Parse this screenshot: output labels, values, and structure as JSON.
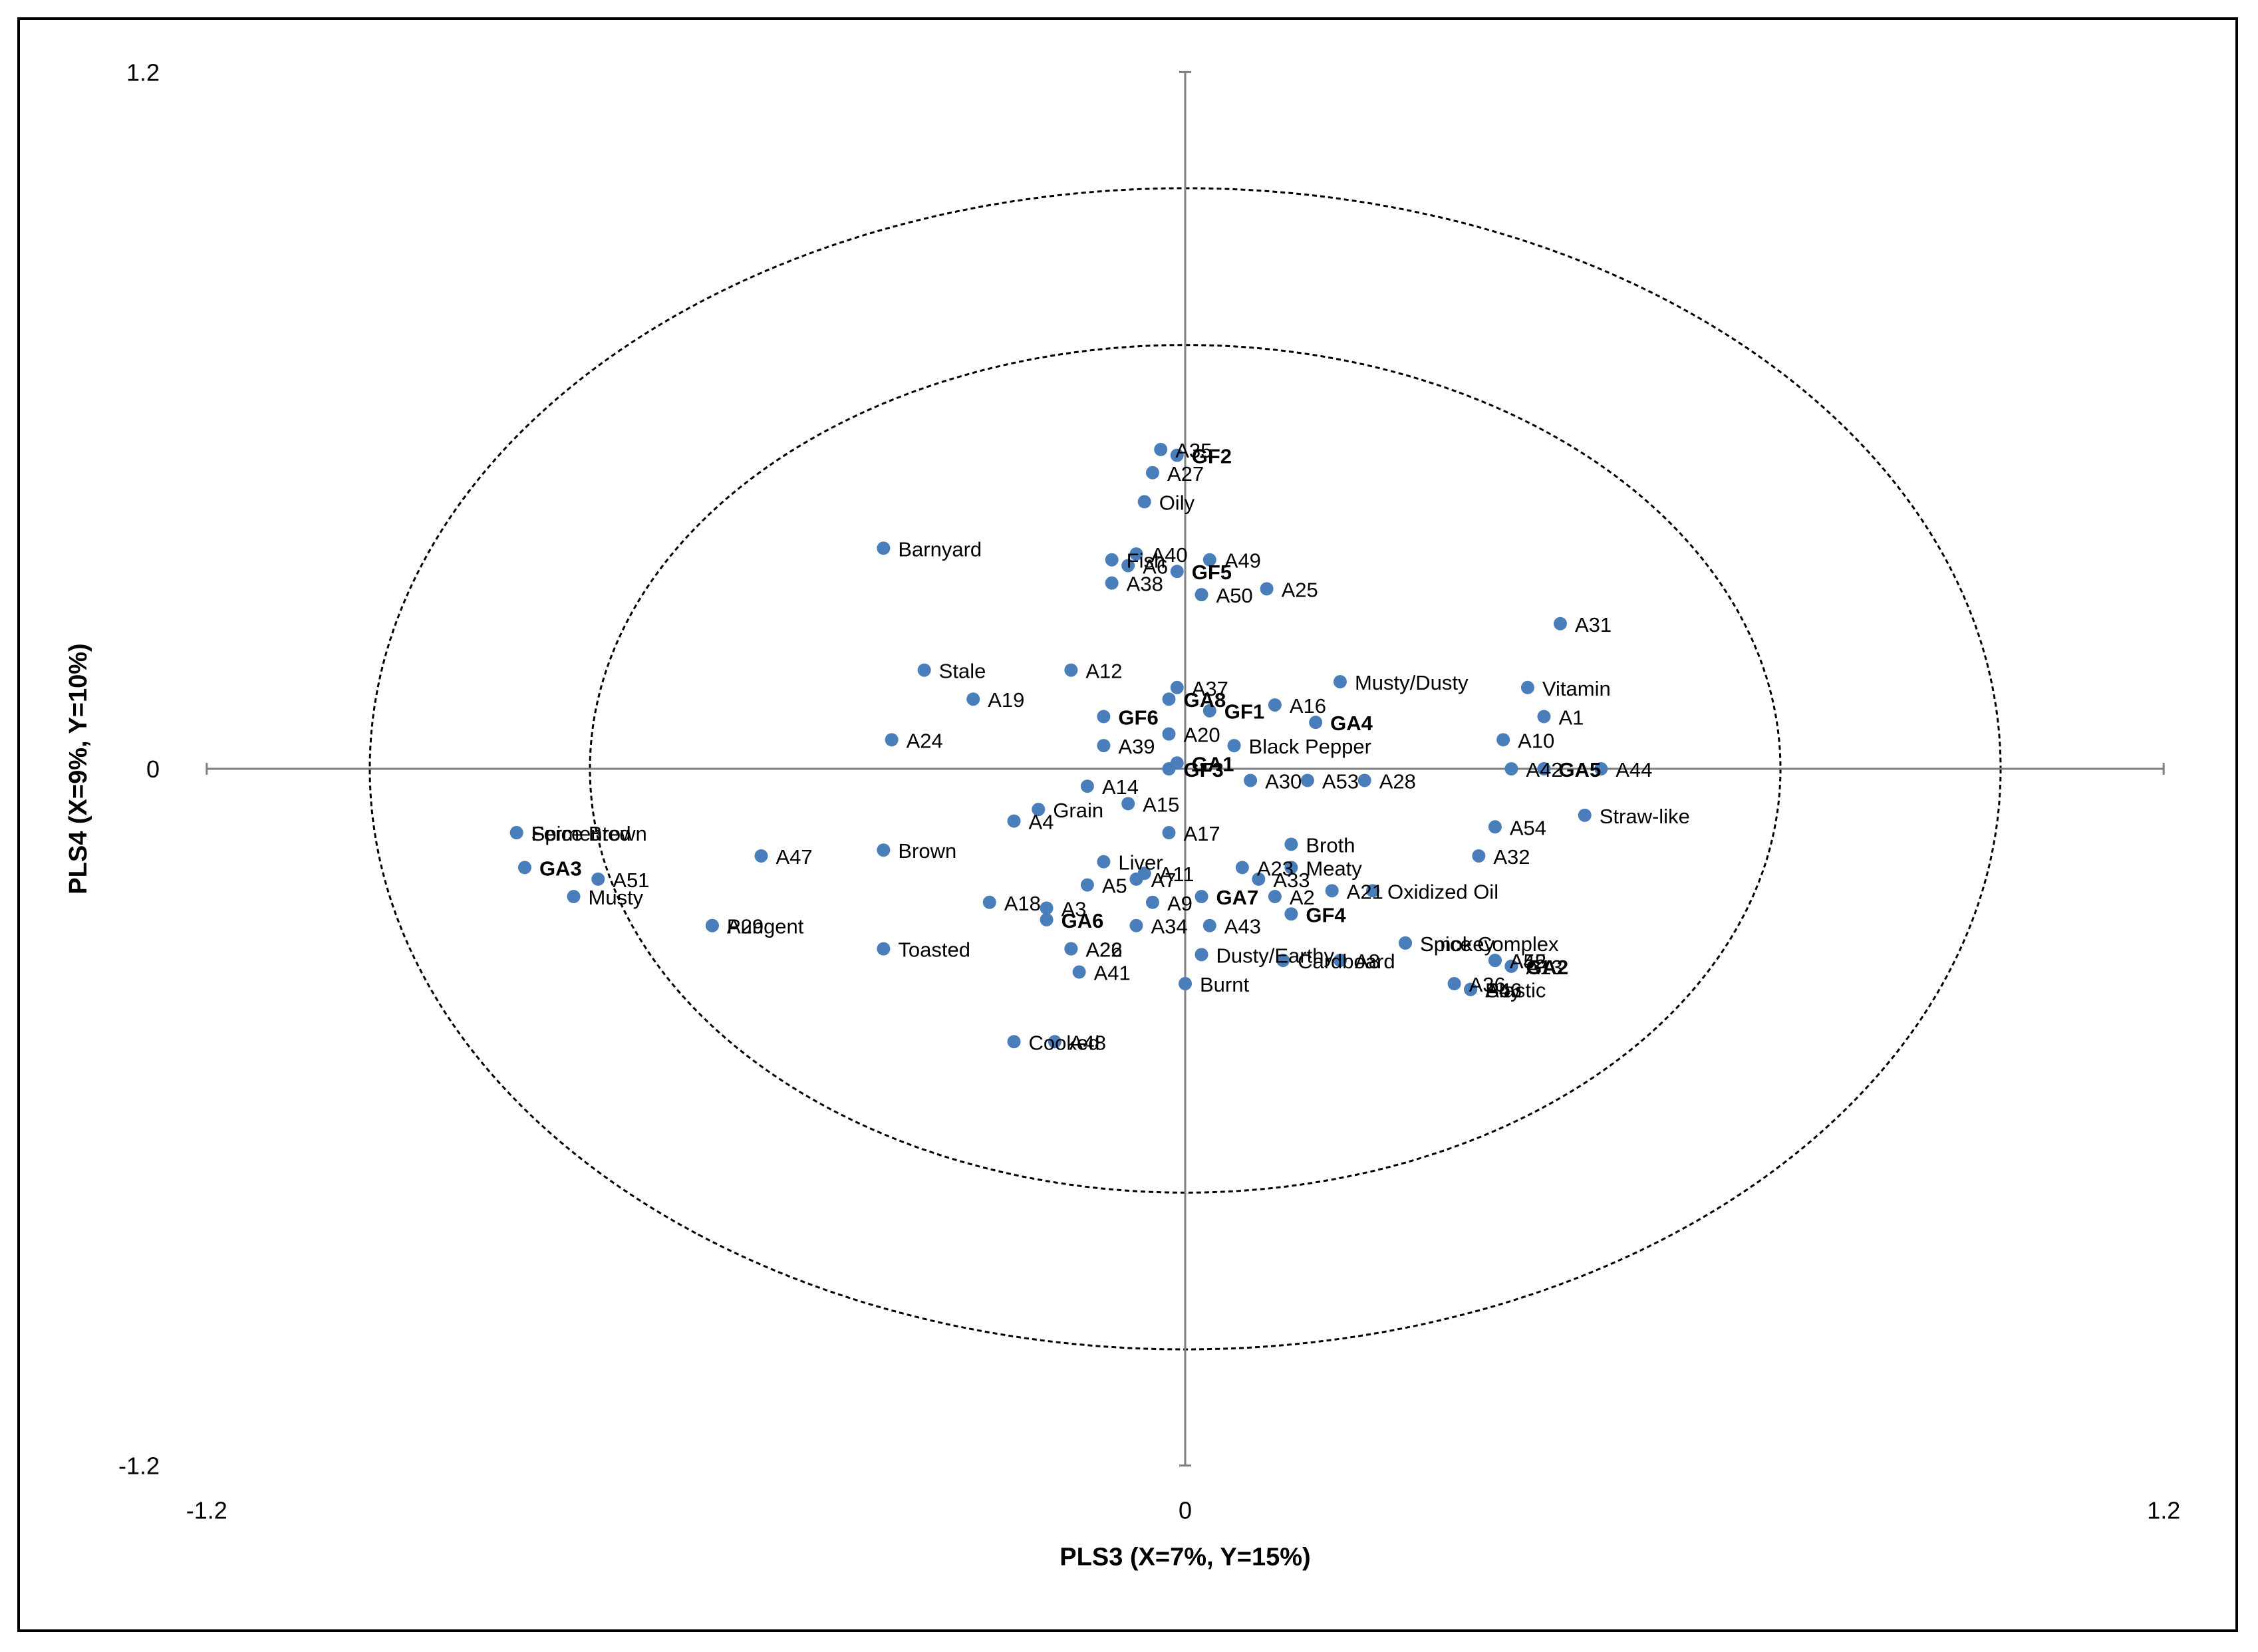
{
  "chart_data": {
    "type": "scatter",
    "title": "",
    "xlabel": "PLS3 (X=7%, Y=15%)",
    "ylabel": "PLS4 (X=9%, Y=10%)",
    "xlim": [
      -1.2,
      1.2
    ],
    "ylim": [
      -1.2,
      1.2
    ],
    "x_ticks": [
      -1.2,
      0,
      1.2
    ],
    "y_ticks": [
      -1.2,
      0,
      1.2
    ],
    "x_tick_labels": [
      "-1.2",
      "0",
      "1.2"
    ],
    "y_tick_labels": [
      "-1.2",
      "0",
      "1.2"
    ],
    "grid": false,
    "legend": "none",
    "marker_color": "#4a7ebb",
    "reference_circles": [
      {
        "radius": 1.0,
        "style": "dashed"
      },
      {
        "radius": 0.73,
        "style": "dashed"
      }
    ],
    "points": [
      {
        "label": "A35",
        "x": -0.03,
        "y": 0.55,
        "bold": false
      },
      {
        "label": "GF2",
        "x": -0.01,
        "y": 0.54,
        "bold": true
      },
      {
        "label": "A27",
        "x": -0.04,
        "y": 0.51,
        "bold": false
      },
      {
        "label": "Oily",
        "x": -0.05,
        "y": 0.46,
        "bold": false
      },
      {
        "label": "Barnyard",
        "x": -0.37,
        "y": 0.38,
        "bold": false
      },
      {
        "label": "Fish",
        "x": -0.09,
        "y": 0.36,
        "bold": false
      },
      {
        "label": "A40",
        "x": -0.06,
        "y": 0.37,
        "bold": false
      },
      {
        "label": "A49",
        "x": 0.03,
        "y": 0.36,
        "bold": false
      },
      {
        "label": "A6",
        "x": -0.07,
        "y": 0.35,
        "bold": false
      },
      {
        "label": "GF5",
        "x": -0.01,
        "y": 0.34,
        "bold": true
      },
      {
        "label": "A38",
        "x": -0.09,
        "y": 0.32,
        "bold": false
      },
      {
        "label": "A25",
        "x": 0.1,
        "y": 0.31,
        "bold": false
      },
      {
        "label": "A50",
        "x": 0.02,
        "y": 0.3,
        "bold": false
      },
      {
        "label": "A31",
        "x": 0.46,
        "y": 0.25,
        "bold": false
      },
      {
        "label": "Stale",
        "x": -0.32,
        "y": 0.17,
        "bold": false
      },
      {
        "label": "A12",
        "x": -0.14,
        "y": 0.17,
        "bold": false
      },
      {
        "label": "A37",
        "x": -0.01,
        "y": 0.14,
        "bold": false
      },
      {
        "label": "Musty/Dusty",
        "x": 0.19,
        "y": 0.15,
        "bold": false
      },
      {
        "label": "A19",
        "x": -0.26,
        "y": 0.12,
        "bold": false
      },
      {
        "label": "GA8",
        "x": -0.02,
        "y": 0.12,
        "bold": true
      },
      {
        "label": "A16",
        "x": 0.11,
        "y": 0.11,
        "bold": false
      },
      {
        "label": "Vitamin",
        "x": 0.42,
        "y": 0.14,
        "bold": false
      },
      {
        "label": "GF6",
        "x": -0.1,
        "y": 0.09,
        "bold": true
      },
      {
        "label": "GF1",
        "x": 0.03,
        "y": 0.1,
        "bold": true
      },
      {
        "label": "GA4",
        "x": 0.16,
        "y": 0.08,
        "bold": true
      },
      {
        "label": "A1",
        "x": 0.44,
        "y": 0.09,
        "bold": false
      },
      {
        "label": "A20",
        "x": -0.02,
        "y": 0.06,
        "bold": false
      },
      {
        "label": "A24",
        "x": -0.36,
        "y": 0.05,
        "bold": false
      },
      {
        "label": "A10",
        "x": 0.39,
        "y": 0.05,
        "bold": false
      },
      {
        "label": "A39",
        "x": -0.1,
        "y": 0.04,
        "bold": false
      },
      {
        "label": "Black Pepper",
        "x": 0.06,
        "y": 0.04,
        "bold": false
      },
      {
        "label": "GA1",
        "x": -0.01,
        "y": 0.01,
        "bold": true
      },
      {
        "label": "GF3",
        "x": -0.02,
        "y": 0.0,
        "bold": true
      },
      {
        "label": "A42",
        "x": 0.4,
        "y": 0.0,
        "bold": false
      },
      {
        "label": "GA5",
        "x": 0.44,
        "y": 0.0,
        "bold": true
      },
      {
        "label": "A44",
        "x": 0.51,
        "y": 0.0,
        "bold": false
      },
      {
        "label": "A14",
        "x": -0.12,
        "y": -0.03,
        "bold": false
      },
      {
        "label": "A30",
        "x": 0.08,
        "y": -0.02,
        "bold": false
      },
      {
        "label": "A53",
        "x": 0.15,
        "y": -0.02,
        "bold": false
      },
      {
        "label": "A28",
        "x": 0.22,
        "y": -0.02,
        "bold": false
      },
      {
        "label": "A15",
        "x": -0.07,
        "y": -0.06,
        "bold": false
      },
      {
        "label": "Grain",
        "x": -0.18,
        "y": -0.07,
        "bold": false
      },
      {
        "label": "Straw-like",
        "x": 0.49,
        "y": -0.08,
        "bold": false
      },
      {
        "label": "A4",
        "x": -0.21,
        "y": -0.09,
        "bold": false
      },
      {
        "label": "A17",
        "x": -0.02,
        "y": -0.11,
        "bold": false
      },
      {
        "label": "A54",
        "x": 0.38,
        "y": -0.1,
        "bold": false
      },
      {
        "label": "Fermented",
        "x": -0.82,
        "y": -0.11,
        "bold": false
      },
      {
        "label": "Spice Brown",
        "x": -0.82,
        "y": -0.11,
        "bold": false
      },
      {
        "label": "Brown",
        "x": -0.37,
        "y": -0.14,
        "bold": false
      },
      {
        "label": "A47",
        "x": -0.52,
        "y": -0.15,
        "bold": false
      },
      {
        "label": "Broth",
        "x": 0.13,
        "y": -0.13,
        "bold": false
      },
      {
        "label": "A32",
        "x": 0.36,
        "y": -0.15,
        "bold": false
      },
      {
        "label": "GA3",
        "x": -0.81,
        "y": -0.17,
        "bold": true
      },
      {
        "label": "A51",
        "x": -0.72,
        "y": -0.19,
        "bold": false
      },
      {
        "label": "Liver",
        "x": -0.1,
        "y": -0.16,
        "bold": false
      },
      {
        "label": "A23",
        "x": 0.07,
        "y": -0.17,
        "bold": false
      },
      {
        "label": "Meaty",
        "x": 0.13,
        "y": -0.17,
        "bold": false
      },
      {
        "label": "A11",
        "x": -0.05,
        "y": -0.18,
        "bold": false
      },
      {
        "label": "A33",
        "x": 0.09,
        "y": -0.19,
        "bold": false
      },
      {
        "label": "A7",
        "x": -0.06,
        "y": -0.19,
        "bold": false
      },
      {
        "label": "Musty",
        "x": -0.75,
        "y": -0.22,
        "bold": false
      },
      {
        "label": "A18",
        "x": -0.24,
        "y": -0.23,
        "bold": false
      },
      {
        "label": "A5",
        "x": -0.12,
        "y": -0.2,
        "bold": false
      },
      {
        "label": "A21",
        "x": 0.18,
        "y": -0.21,
        "bold": false
      },
      {
        "label": "Oxidized Oil",
        "x": 0.23,
        "y": -0.21,
        "bold": false
      },
      {
        "label": "GA7",
        "x": 0.02,
        "y": -0.22,
        "bold": true
      },
      {
        "label": "A2",
        "x": 0.11,
        "y": -0.22,
        "bold": false
      },
      {
        "label": "A3",
        "x": -0.17,
        "y": -0.24,
        "bold": false
      },
      {
        "label": "A9",
        "x": -0.04,
        "y": -0.23,
        "bold": false
      },
      {
        "label": "GF4",
        "x": 0.13,
        "y": -0.25,
        "bold": true
      },
      {
        "label": "GA6",
        "x": -0.17,
        "y": -0.26,
        "bold": true
      },
      {
        "label": "A34",
        "x": -0.06,
        "y": -0.27,
        "bold": false
      },
      {
        "label": "A43",
        "x": 0.03,
        "y": -0.27,
        "bold": false
      },
      {
        "label": "Pungent",
        "x": -0.58,
        "y": -0.27,
        "bold": false
      },
      {
        "label": "A29",
        "x": -0.58,
        "y": -0.27,
        "bold": false
      },
      {
        "label": "Spice Complex",
        "x": 0.27,
        "y": -0.3,
        "bold": false
      },
      {
        "label": "Smokey",
        "x": 0.27,
        "y": -0.3,
        "bold": false
      },
      {
        "label": "A45",
        "x": 0.38,
        "y": -0.33,
        "bold": false
      },
      {
        "label": "Toasted",
        "x": -0.37,
        "y": -0.31,
        "bold": false
      },
      {
        "label": "A22",
        "x": -0.14,
        "y": -0.31,
        "bold": false
      },
      {
        "label": "A26",
        "x": -0.14,
        "y": -0.31,
        "bold": false
      },
      {
        "label": "Dusty/Earthy",
        "x": 0.02,
        "y": -0.32,
        "bold": false
      },
      {
        "label": "A8",
        "x": 0.19,
        "y": -0.33,
        "bold": false
      },
      {
        "label": "A52",
        "x": 0.38,
        "y": -0.33,
        "bold": false
      },
      {
        "label": "GA2",
        "x": 0.4,
        "y": -0.34,
        "bold": true
      },
      {
        "label": "A41",
        "x": -0.13,
        "y": -0.35,
        "bold": false
      },
      {
        "label": "A13",
        "x": 0.4,
        "y": -0.34,
        "bold": false
      },
      {
        "label": "Burnt",
        "x": 0.0,
        "y": -0.37,
        "bold": false
      },
      {
        "label": "A36",
        "x": 0.33,
        "y": -0.37,
        "bold": false
      },
      {
        "label": "Soy",
        "x": 0.35,
        "y": -0.38,
        "bold": false
      },
      {
        "label": "Cardboard",
        "x": 0.12,
        "y": -0.33,
        "bold": false
      },
      {
        "label": "A46",
        "x": 0.35,
        "y": -0.38,
        "bold": false
      },
      {
        "label": "Plastic",
        "x": 0.35,
        "y": -0.38,
        "bold": false
      },
      {
        "label": "A48",
        "x": -0.16,
        "y": -0.47,
        "bold": false
      },
      {
        "label": "Cooked",
        "x": -0.21,
        "y": -0.47,
        "bold": false
      }
    ]
  }
}
